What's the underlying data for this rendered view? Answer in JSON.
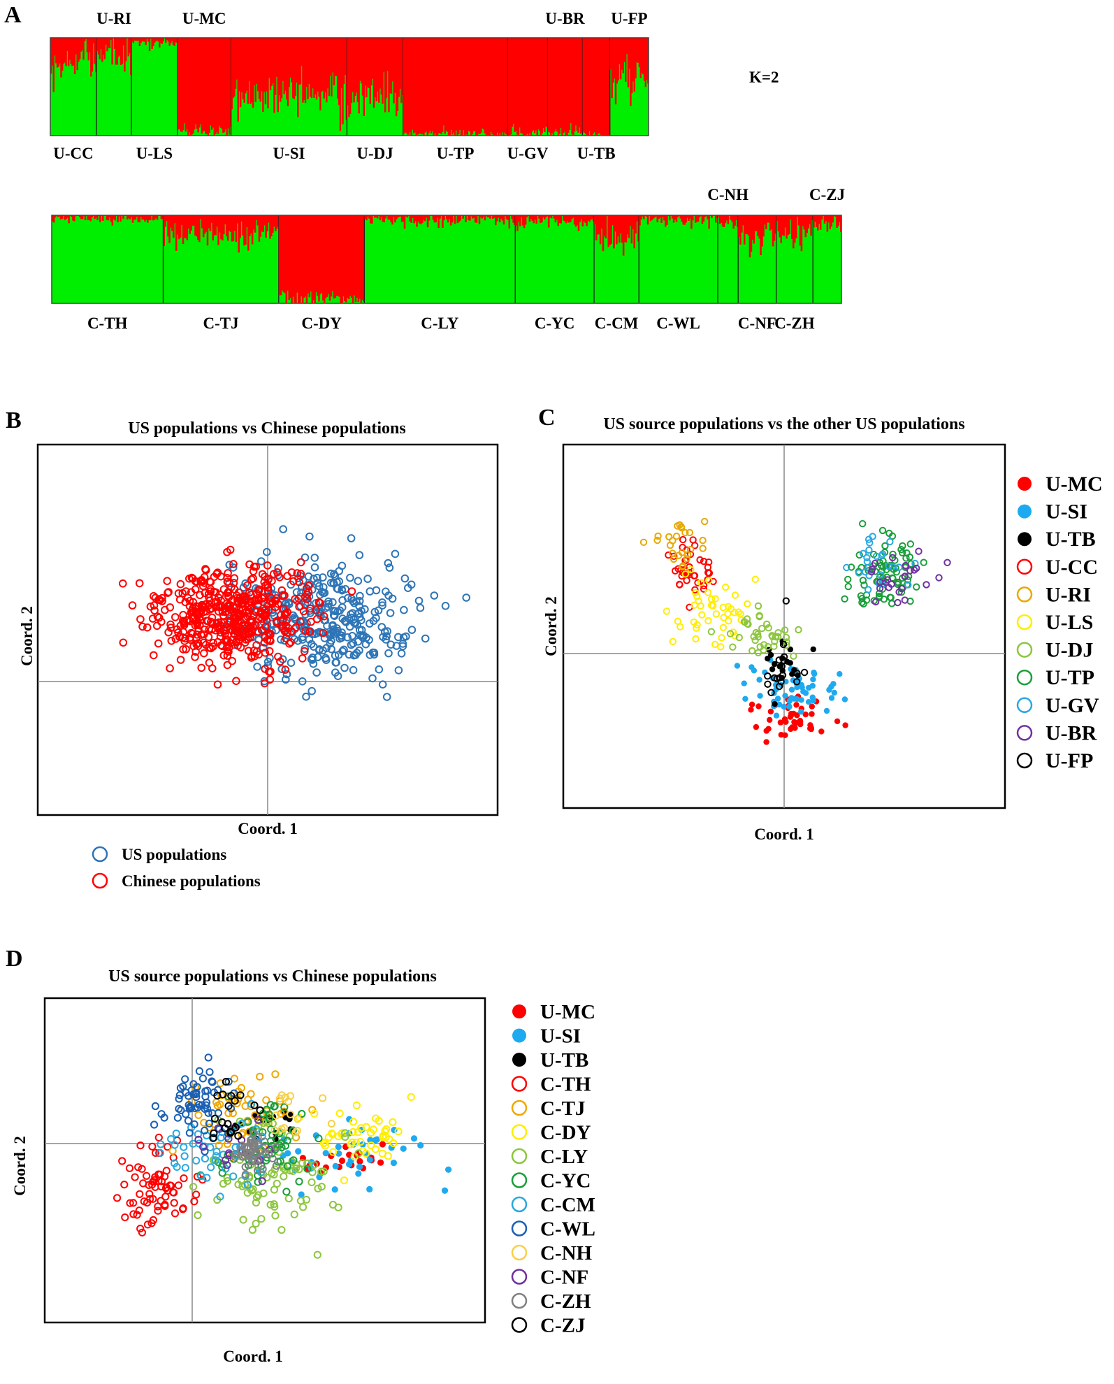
{
  "figure": {
    "panel_labels": [
      "A",
      "B",
      "C",
      "D"
    ]
  },
  "chart_data": [
    {
      "panel": "A",
      "type": "bar",
      "subtype": "structure-admixture",
      "k_label": "K=2",
      "colors": {
        "cluster1": "#ff0000",
        "cluster2": "#00ee00"
      },
      "rows": [
        {
          "populations": [
            "U-CC",
            "U-RI",
            "U-LS",
            "U-MC",
            "U-SI",
            "U-DJ",
            "U-TP",
            "U-GV",
            "U-BR",
            "U-TB",
            "U-FP"
          ],
          "sizes": [
            37,
            28,
            37,
            43,
            93,
            45,
            84,
            32,
            28,
            22,
            31
          ],
          "red_fraction": [
            0.25,
            0.2,
            0.05,
            0.95,
            0.62,
            0.6,
            0.98,
            0.97,
            0.97,
            0.99,
            0.45
          ]
        },
        {
          "populations": [
            "C-TH",
            "C-TJ",
            "C-DY",
            "C-LY",
            "C-YC",
            "C-CM",
            "C-WL",
            "C-NH",
            "C-NF",
            "C-ZH",
            "C-ZJ"
          ],
          "sizes": [
            82,
            85,
            63,
            111,
            58,
            33,
            58,
            15,
            28,
            27,
            21
          ],
          "red_fraction": [
            0.03,
            0.2,
            0.94,
            0.05,
            0.07,
            0.28,
            0.05,
            0.08,
            0.25,
            0.18,
            0.1
          ]
        }
      ]
    },
    {
      "panel": "B",
      "type": "scatter",
      "title": "US populations vs Chinese populations",
      "xlabel": "Coord. 1",
      "ylabel": "Coord. 2",
      "xlim": [
        -1,
        1
      ],
      "ylim": [
        -1,
        1
      ],
      "series": [
        {
          "name": "US populations",
          "color": "#2e75b6",
          "marker": "ring",
          "n": 330,
          "center": [
            0.25,
            0.05
          ],
          "spread": [
            0.38,
            0.28
          ]
        },
        {
          "name": "Chinese populations",
          "color": "#ff0000",
          "marker": "ring",
          "n": 480,
          "center": [
            -0.15,
            0.08
          ],
          "spread": [
            0.3,
            0.24
          ]
        }
      ]
    },
    {
      "panel": "C",
      "type": "scatter",
      "title": "US source populations vs the other US populations",
      "xlabel": "Coord. 1",
      "ylabel": "Coord. 2",
      "xlim": [
        -1,
        1
      ],
      "ylim": [
        -1,
        1
      ],
      "series": [
        {
          "name": "U-MC",
          "color": "#ff0000",
          "marker": "dot",
          "n": 45,
          "center": [
            0.02,
            -0.5
          ],
          "spread": [
            0.14,
            0.12
          ]
        },
        {
          "name": "U-SI",
          "color": "#1eaaf0",
          "marker": "dot",
          "n": 60,
          "center": [
            0.05,
            -0.35
          ],
          "spread": [
            0.18,
            0.14
          ]
        },
        {
          "name": "U-TB",
          "color": "#000000",
          "marker": "dot",
          "n": 20,
          "center": [
            0.0,
            -0.2
          ],
          "spread": [
            0.08,
            0.15
          ]
        },
        {
          "name": "U-CC",
          "color": "#ff0000",
          "marker": "ring",
          "n": 40,
          "center": [
            -0.42,
            0.3
          ],
          "spread": [
            0.1,
            0.12
          ]
        },
        {
          "name": "U-RI",
          "color": "#e8a800",
          "marker": "ring",
          "n": 25,
          "center": [
            -0.48,
            0.45
          ],
          "spread": [
            0.09,
            0.12
          ]
        },
        {
          "name": "U-LS",
          "color": "#ffee00",
          "marker": "ring",
          "n": 45,
          "center": [
            -0.3,
            0.05
          ],
          "spread": [
            0.18,
            0.2
          ]
        },
        {
          "name": "U-DJ",
          "color": "#8dc63f",
          "marker": "ring",
          "n": 40,
          "center": [
            -0.1,
            -0.05
          ],
          "spread": [
            0.15,
            0.12
          ]
        },
        {
          "name": "U-TP",
          "color": "#1a9e3a",
          "marker": "ring",
          "n": 80,
          "center": [
            0.45,
            0.3
          ],
          "spread": [
            0.14,
            0.18
          ]
        },
        {
          "name": "U-GV",
          "color": "#29a8e0",
          "marker": "ring",
          "n": 25,
          "center": [
            0.4,
            0.35
          ],
          "spread": [
            0.12,
            0.12
          ]
        },
        {
          "name": "U-BR",
          "color": "#7030a0",
          "marker": "ring",
          "n": 25,
          "center": [
            0.52,
            0.25
          ],
          "spread": [
            0.12,
            0.12
          ]
        },
        {
          "name": "U-FP",
          "color": "#000000",
          "marker": "ring",
          "n": 18,
          "center": [
            0.0,
            -0.25
          ],
          "spread": [
            0.07,
            0.2
          ]
        }
      ]
    },
    {
      "panel": "D",
      "type": "scatter",
      "title": "US source populations vs Chinese populations",
      "xlabel": "Coord. 1",
      "ylabel": "Coord. 2",
      "xlim": [
        -1,
        1
      ],
      "ylim": [
        -1,
        1
      ],
      "series": [
        {
          "name": "U-MC",
          "color": "#ff0000",
          "marker": "dot",
          "n": 20,
          "center": [
            0.35,
            0.0
          ],
          "spread": [
            0.15,
            0.1
          ]
        },
        {
          "name": "U-SI",
          "color": "#1eaaf0",
          "marker": "dot",
          "n": 40,
          "center": [
            0.4,
            0.05
          ],
          "spread": [
            0.3,
            0.2
          ]
        },
        {
          "name": "U-TB",
          "color": "#000000",
          "marker": "dot",
          "n": 18,
          "center": [
            0.0,
            0.22
          ],
          "spread": [
            0.1,
            0.1
          ]
        },
        {
          "name": "C-TH",
          "color": "#ff0000",
          "marker": "ring",
          "n": 70,
          "center": [
            -0.5,
            -0.2
          ],
          "spread": [
            0.16,
            0.3
          ]
        },
        {
          "name": "C-TJ",
          "color": "#f0a800",
          "marker": "ring",
          "n": 50,
          "center": [
            -0.1,
            0.3
          ],
          "spread": [
            0.2,
            0.25
          ]
        },
        {
          "name": "C-DY",
          "color": "#ffee00",
          "marker": "ring",
          "n": 45,
          "center": [
            0.42,
            0.15
          ],
          "spread": [
            0.2,
            0.18
          ]
        },
        {
          "name": "C-LY",
          "color": "#8dc63f",
          "marker": "ring",
          "n": 90,
          "center": [
            0.05,
            -0.1
          ],
          "spread": [
            0.28,
            0.3
          ]
        },
        {
          "name": "C-YC",
          "color": "#1a9e3a",
          "marker": "ring",
          "n": 55,
          "center": [
            0.0,
            0.1
          ],
          "spread": [
            0.2,
            0.25
          ]
        },
        {
          "name": "C-CM",
          "color": "#29a8e0",
          "marker": "ring",
          "n": 50,
          "center": [
            -0.2,
            0.1
          ],
          "spread": [
            0.2,
            0.25
          ]
        },
        {
          "name": "C-WL",
          "color": "#1a5fb4",
          "marker": "ring",
          "n": 60,
          "center": [
            -0.3,
            0.35
          ],
          "spread": [
            0.15,
            0.22
          ]
        },
        {
          "name": "C-NH",
          "color": "#f7d04a",
          "marker": "ring",
          "n": 15,
          "center": [
            0.05,
            0.25
          ],
          "spread": [
            0.2,
            0.2
          ]
        },
        {
          "name": "C-NF",
          "color": "#7030a0",
          "marker": "ring",
          "n": 18,
          "center": [
            -0.1,
            0.1
          ],
          "spread": [
            0.15,
            0.18
          ]
        },
        {
          "name": "C-ZH",
          "color": "#808080",
          "marker": "ring",
          "n": 40,
          "center": [
            -0.05,
            0.05
          ],
          "spread": [
            0.1,
            0.1
          ]
        },
        {
          "name": "C-ZJ",
          "color": "#000000",
          "marker": "ring",
          "n": 20,
          "center": [
            -0.15,
            0.3
          ],
          "spread": [
            0.1,
            0.2
          ]
        }
      ]
    }
  ]
}
